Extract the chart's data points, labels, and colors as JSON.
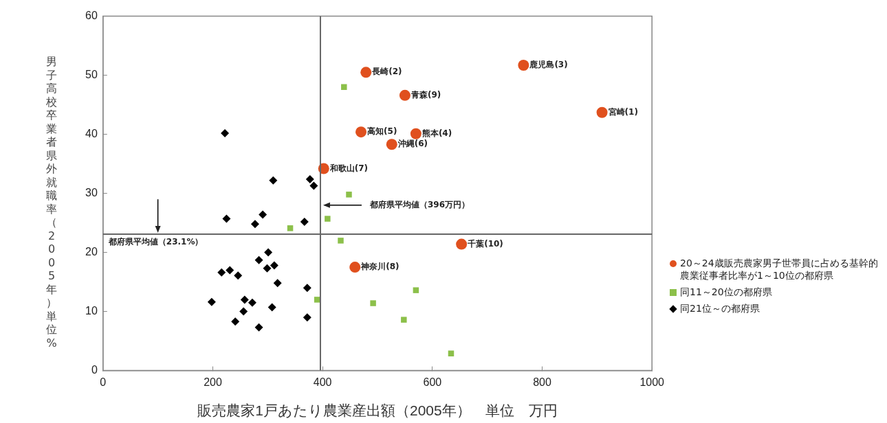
{
  "chart_data": {
    "type": "scatter",
    "xlabel": "販売農家1戸あたり農業産出額（2005年）　単位　万円",
    "ylabel": "男子高校卒業者県外就職率（2005年）単位%",
    "xlim": [
      0,
      1000
    ],
    "xticks": [
      0,
      200,
      400,
      600,
      800,
      1000
    ],
    "ylim": [
      0,
      60
    ],
    "yticks": [
      0,
      10,
      20,
      30,
      40,
      50,
      60
    ],
    "grid": false,
    "legend": "right",
    "series": [
      {
        "name": "20～24歳販売農家男子世帯員に占める基幹的農業従事者比率が1～10位の都府県",
        "color": "#e0501e",
        "marker": "circle",
        "x": [
          909,
          479,
          766,
          570,
          470,
          526,
          402,
          459,
          550,
          653
        ],
        "values": [
          43.7,
          50.5,
          51.7,
          40.1,
          40.4,
          38.3,
          34.2,
          17.5,
          46.6,
          21.4
        ]
      },
      {
        "name": "同11～20位の都府県",
        "color": "#8cc04a",
        "marker": "square",
        "x": [
          439,
          448,
          409,
          341,
          433,
          390,
          570,
          492,
          548,
          634
        ],
        "values": [
          48.0,
          29.8,
          25.7,
          24.1,
          22.0,
          12.0,
          13.6,
          11.4,
          8.6,
          2.9
        ]
      },
      {
        "name": "同21位～の都府県",
        "color": "#000000",
        "marker": "diamond",
        "x": [
          222,
          310,
          377,
          384,
          225,
          291,
          277,
          367,
          301,
          284,
          312,
          299,
          216,
          231,
          246,
          318,
          372,
          198,
          258,
          272,
          308,
          256,
          241,
          372,
          284
        ],
        "values": [
          40.2,
          32.2,
          32.4,
          31.3,
          25.7,
          26.4,
          24.8,
          25.2,
          20.0,
          18.7,
          17.8,
          17.3,
          16.6,
          17.0,
          16.1,
          14.8,
          14.0,
          11.6,
          12.0,
          11.5,
          10.7,
          10.0,
          8.3,
          9.0,
          7.3
        ]
      }
    ],
    "ref_lines": [
      {
        "axis": "x",
        "value": 396,
        "label": "都府県平均値（396万円）",
        "color": "#666666"
      },
      {
        "axis": "y",
        "value": 23.1,
        "label": "都府県平均値（23.1%）",
        "color": "#666666"
      }
    ],
    "annotations": [
      {
        "text": "宮崎(1)",
        "x": 909,
        "y": 43.7
      },
      {
        "text": "長崎(2)",
        "x": 479,
        "y": 50.5
      },
      {
        "text": "鹿児島(3)",
        "x": 766,
        "y": 51.7
      },
      {
        "text": "熊本(4)",
        "x": 570,
        "y": 40.1
      },
      {
        "text": "高知(5)",
        "x": 470,
        "y": 40.4
      },
      {
        "text": "沖縄(6)",
        "x": 526,
        "y": 38.3
      },
      {
        "text": "和歌山(7)",
        "x": 402,
        "y": 34.2
      },
      {
        "text": "神奈川(8)",
        "x": 459,
        "y": 17.5
      },
      {
        "text": "青森(9)",
        "x": 550,
        "y": 46.6
      },
      {
        "text": "千葉(10)",
        "x": 653,
        "y": 21.4
      }
    ]
  }
}
